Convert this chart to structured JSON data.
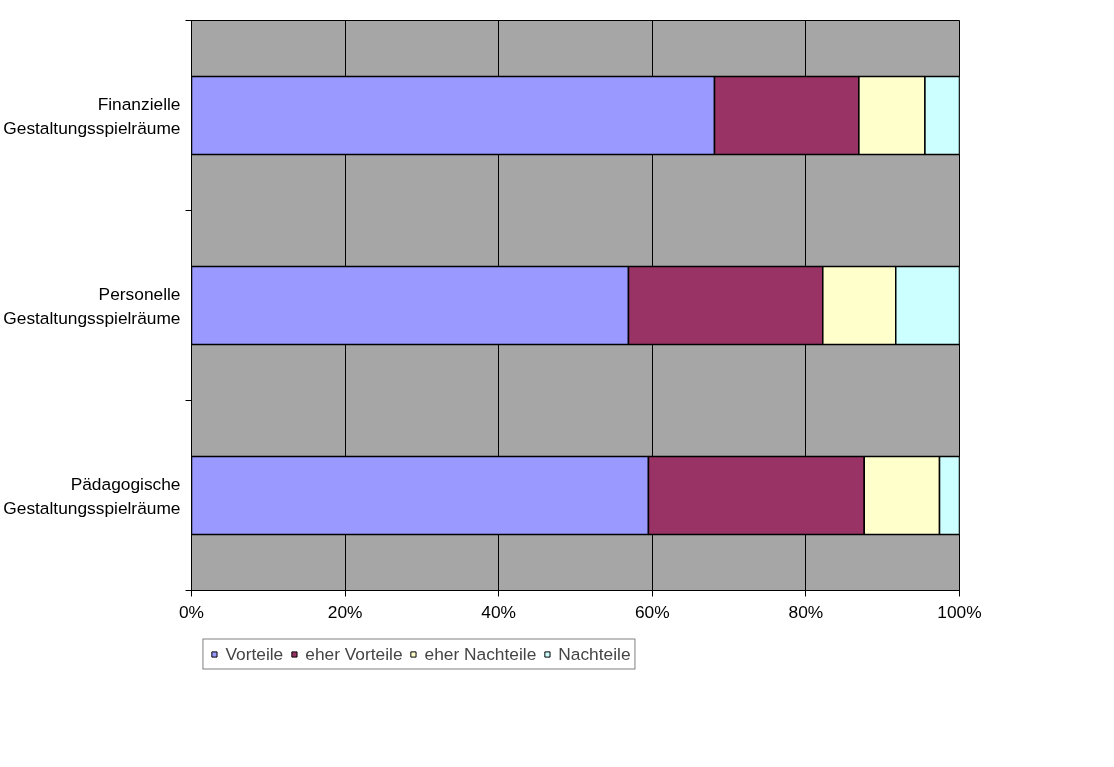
{
  "chart_data": {
    "type": "bar",
    "orientation": "horizontal",
    "stacked": true,
    "categories": [
      "Finanzielle Gestaltungsspielräume",
      "Personelle Gestaltungsspielräume",
      "Pädagogische Gestaltungsspielräume"
    ],
    "series": [
      {
        "name": "Vorteile",
        "color": "#9999ff",
        "values": [
          68.1,
          56.9,
          59.5
        ]
      },
      {
        "name": "eher Vorteile",
        "color": "#993366",
        "values": [
          18.8,
          25.3,
          28.1
        ]
      },
      {
        "name": "eher Nachteile",
        "color": "#ffffcc",
        "values": [
          8.6,
          9.5,
          9.8
        ]
      },
      {
        "name": "Nachteile",
        "color": "#ccffff",
        "values": [
          4.5,
          8.3,
          2.6
        ]
      }
    ],
    "xlim": [
      0,
      100
    ],
    "xticks": [
      {
        "value": 0,
        "label": "0%"
      },
      {
        "value": 20,
        "label": "20%"
      },
      {
        "value": 40,
        "label": "40%"
      },
      {
        "value": 60,
        "label": "60%"
      },
      {
        "value": 80,
        "label": "80%"
      },
      {
        "value": 100,
        "label": "100%"
      }
    ],
    "grid": "x",
    "legend": "bottom"
  }
}
